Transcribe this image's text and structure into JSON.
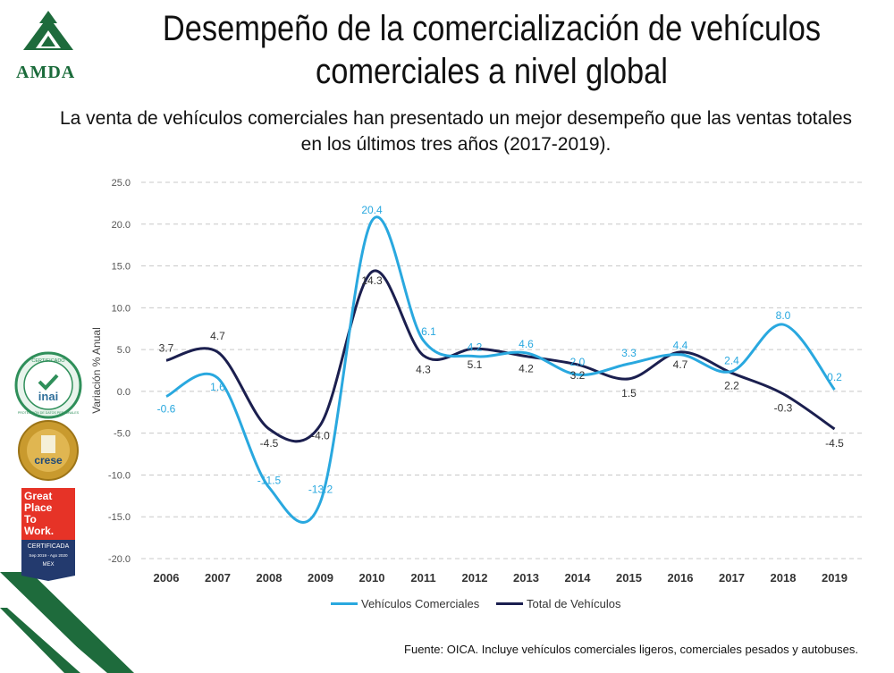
{
  "header": {
    "logo_text": "AMDA",
    "title": "Desempeño de la comercialización de vehículos comerciales a nivel global",
    "subtitle": "La venta de vehículos comerciales han presentado un mejor desempeño que las ventas totales en los últimos tres años (2017-2019)."
  },
  "badges": {
    "inai_top": "CERTIFICADO",
    "inai_label": "inai",
    "inai_ring": "PROTECCIÓN DE DATOS PERSONALES",
    "crese_label": "crese",
    "gptw_lines": [
      "Great",
      "Place",
      "To",
      "Work."
    ],
    "gptw_cert": "CERTIFICADA",
    "gptw_dates": "Sep 2019 - Ago 2020",
    "gptw_country": "MEX"
  },
  "chart_data": {
    "type": "line",
    "title": "",
    "xlabel": "",
    "ylabel": "Variación % Anual",
    "ylim": [
      -20,
      25
    ],
    "yticks": [
      "25.0",
      "20.0",
      "15.0",
      "10.0",
      "5.0",
      "0.0",
      "-5.0",
      "-10.0",
      "-15.0",
      "-20.0"
    ],
    "categories": [
      "2006",
      "2007",
      "2008",
      "2009",
      "2010",
      "2011",
      "2012",
      "2013",
      "2014",
      "2015",
      "2016",
      "2017",
      "2018",
      "2019"
    ],
    "series": [
      {
        "name": "Vehículos Comerciales",
        "color": "#29a8df",
        "values": [
          -0.6,
          1.6,
          -11.5,
          -13.2,
          20.4,
          6.1,
          4.2,
          4.6,
          2.0,
          3.3,
          4.4,
          2.4,
          8.0,
          0.2
        ],
        "labels": [
          "-0.6",
          "1.6",
          "-11.5",
          "-13.2",
          "20.4",
          "6.1",
          "4.2",
          "4.6",
          "2.0",
          "3.3",
          "4.4",
          "2.4",
          "8.0",
          "0.2"
        ]
      },
      {
        "name": "Total de Vehículos",
        "color": "#1b1f4f",
        "values": [
          3.7,
          4.7,
          -4.5,
          -4.0,
          14.3,
          4.3,
          5.1,
          4.2,
          3.2,
          1.5,
          4.7,
          2.2,
          -0.3,
          -4.5
        ],
        "labels": [
          "3.7",
          "4.7",
          "-4.5",
          "-4.0",
          "14.3",
          "4.3",
          "5.1",
          "4.2",
          "3.2",
          "1.5",
          "4.7",
          "2.2",
          "-0.3",
          "-4.5"
        ]
      }
    ],
    "grid": true,
    "legend": "bottom-center"
  },
  "footer": {
    "source": "Fuente: OICA. Incluye vehículos comerciales ligeros, comerciales pesados y autobuses."
  }
}
